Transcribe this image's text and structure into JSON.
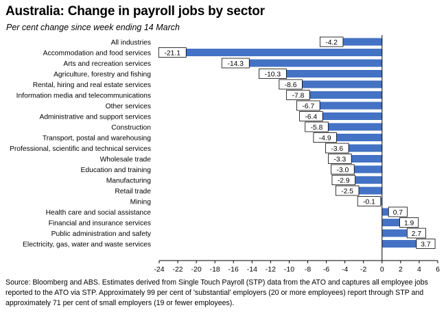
{
  "chart_data": {
    "type": "bar",
    "orientation": "horizontal",
    "title": "Australia:  Change in payroll jobs by sector",
    "subtitle": "Per cent change since week ending 14 March",
    "categories": [
      "All industries",
      "Accommodation and food services",
      "Arts and recreation services",
      "Agriculture, forestry and fishing",
      "Rental, hiring and real estate services",
      "Information media and telecommunications",
      "Other services",
      "Administrative and support services",
      "Construction",
      "Transport, postal and warehousing",
      "Professional, scientific and technical services",
      "Wholesale trade",
      "Education and training",
      "Manufacturing",
      "Retail trade",
      "Mining",
      "Health care and social assistance",
      "Financial and insurance services",
      "Public administration and safety",
      "Electricity, gas, water and waste services"
    ],
    "values": [
      -4.2,
      -21.1,
      -14.3,
      -10.3,
      -8.6,
      -7.8,
      -6.7,
      -6.4,
      -5.8,
      -4.9,
      -3.6,
      -3.3,
      -3.0,
      -2.9,
      -2.5,
      -0.1,
      0.7,
      1.9,
      2.7,
      3.7
    ],
    "data_labels": [
      "-4.2",
      "-21.1",
      "-14.3",
      "-10.3",
      "-8.6",
      "-7.8",
      "-6.7",
      "-6.4",
      "-5.8",
      "-4.9",
      "-3.6",
      "-3.3",
      "-3.0",
      "-2.9",
      "-2.5",
      "-0.1",
      "0.7",
      "1.9",
      "2.7",
      "3.7"
    ],
    "xlim": [
      -24,
      6
    ],
    "xticks": [
      -24,
      -22,
      -20,
      -18,
      -16,
      -14,
      -12,
      -10,
      -8,
      -6,
      -4,
      -2,
      0,
      2,
      4,
      6
    ],
    "xlabel": "",
    "ylabel": "",
    "grid": false,
    "legend": "none",
    "bar_color": "#4472c4"
  },
  "source_note": "Source: Bloomberg and ABS.  Estimates derived from Single Touch Payroll (STP) data from the ATO and captures all employee jobs reported to the ATO via STP.  Approximately 99 per cent of 'substantial' employers (20 or more employees) report through STP and approximately 71 per cent of small employers (19 or fewer employees)."
}
